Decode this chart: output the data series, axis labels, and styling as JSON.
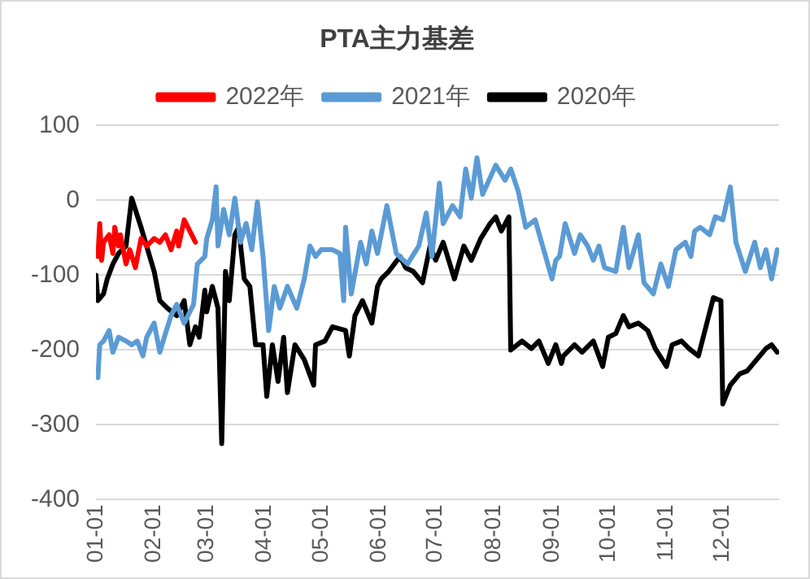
{
  "chart_data": {
    "type": "line",
    "title": "PTA主力基差",
    "legend": "top",
    "grid": "y",
    "line_style": "solid",
    "marker": "none",
    "xlim": [
      "--01-01",
      "--12-31"
    ],
    "xticks": [
      {
        "value": "--01-01",
        "label": "01-01"
      },
      {
        "value": "--02-01",
        "label": "02-01"
      },
      {
        "value": "--03-01",
        "label": "03-01"
      },
      {
        "value": "--04-01",
        "label": "04-01"
      },
      {
        "value": "--05-01",
        "label": "05-01"
      },
      {
        "value": "--06-01",
        "label": "06-01"
      },
      {
        "value": "--07-01",
        "label": "07-01"
      },
      {
        "value": "--08-01",
        "label": "08-01"
      },
      {
        "value": "--09-01",
        "label": "09-01"
      },
      {
        "value": "--10-01",
        "label": "10-01"
      },
      {
        "value": "--11-01",
        "label": "11-01"
      },
      {
        "value": "--12-01",
        "label": "12-01"
      }
    ],
    "ylim": [
      -400,
      100
    ],
    "yticks": [
      -400,
      -300,
      -200,
      -100,
      0,
      100
    ],
    "series": [
      {
        "name": "2022年",
        "color": "#ff0000",
        "x": [
          "--01-02",
          "--01-03",
          "--01-04",
          "--01-05",
          "--01-08",
          "--01-10",
          "--01-11",
          "--01-13",
          "--01-14",
          "--01-17",
          "--01-19",
          "--01-22",
          "--01-25",
          "--01-28",
          "--02-01",
          "--02-04",
          "--02-07",
          "--02-10",
          "--02-13",
          "--02-14",
          "--02-17",
          "--02-20",
          "--02-23"
        ],
        "values": [
          -75,
          -31,
          -80,
          -56,
          -46,
          -71,
          -36,
          -61,
          -46,
          -85,
          -66,
          -90,
          -51,
          -61,
          -51,
          -56,
          -46,
          -66,
          -41,
          -61,
          -26,
          -41,
          -56
        ]
      },
      {
        "name": "2021年",
        "color": "#5b9bd5",
        "x": [
          "--01-02",
          "--01-03",
          "--01-05",
          "--01-08",
          "--01-10",
          "--01-13",
          "--01-17",
          "--01-20",
          "--01-23",
          "--01-26",
          "--01-28",
          "--02-01",
          "--02-04",
          "--02-07",
          "--02-10",
          "--02-13",
          "--02-17",
          "--02-22",
          "--02-24",
          "--02-28",
          "--03-01",
          "--03-04",
          "--03-06",
          "--03-07",
          "--03-10",
          "--03-13",
          "--03-16",
          "--03-19",
          "--03-22",
          "--03-25",
          "--03-28",
          "--03-31",
          "--04-03",
          "--04-06",
          "--04-09",
          "--04-13",
          "--04-18",
          "--04-22",
          "--04-25",
          "--04-28",
          "--05-01",
          "--05-07",
          "--05-11",
          "--05-13",
          "--05-14",
          "--05-17",
          "--05-22",
          "--05-25",
          "--05-28",
          "--05-31",
          "--06-05",
          "--06-10",
          "--06-16",
          "--06-22",
          "--06-26",
          "--06-29",
          "--07-03",
          "--07-05",
          "--07-10",
          "--07-14",
          "--07-17",
          "--07-20",
          "--07-23",
          "--07-26",
          "--08-02",
          "--08-07",
          "--08-10",
          "--08-14",
          "--08-18",
          "--08-23",
          "--08-27",
          "--09-01",
          "--09-03",
          "--09-05",
          "--09-08",
          "--09-13",
          "--09-16",
          "--09-20",
          "--09-23",
          "--09-26",
          "--09-29",
          "--10-05",
          "--10-09",
          "--10-12",
          "--10-17",
          "--10-20",
          "--10-25",
          "--10-29",
          "--11-02",
          "--11-06",
          "--11-11",
          "--11-14",
          "--11-16",
          "--11-19",
          "--11-24",
          "--11-27",
          "--12-01",
          "--12-05",
          "--12-08",
          "--12-13",
          "--12-18",
          "--12-21",
          "--12-24",
          "--12-27",
          "--12-30"
        ],
        "values": [
          -237,
          -193,
          -188,
          -174,
          -203,
          -183,
          -188,
          -193,
          -188,
          -208,
          -183,
          -164,
          -203,
          -178,
          -154,
          -139,
          -164,
          -139,
          -85,
          -75,
          -51,
          -26,
          18,
          -61,
          -12,
          -46,
          3,
          -56,
          -31,
          -66,
          -2,
          -75,
          -174,
          -115,
          -144,
          -115,
          -144,
          -105,
          -61,
          -75,
          -66,
          -66,
          -71,
          -134,
          -36,
          -125,
          -56,
          -85,
          -41,
          -71,
          -7,
          -71,
          -85,
          -61,
          -17,
          -75,
          23,
          -31,
          -7,
          -22,
          42,
          3,
          57,
          8,
          47,
          27,
          42,
          12,
          -36,
          -26,
          -61,
          -105,
          -80,
          -75,
          -31,
          -71,
          -46,
          -61,
          -80,
          -61,
          -90,
          -95,
          -36,
          -90,
          -46,
          -110,
          -125,
          -85,
          -115,
          -66,
          -56,
          -75,
          -41,
          -36,
          -46,
          -22,
          -26,
          18,
          -56,
          -95,
          -56,
          -90,
          -66,
          -105,
          -66
        ]
      },
      {
        "name": "2020年",
        "color": "#000000",
        "x": [
          "--01-01",
          "--01-02",
          "--01-05",
          "--01-07",
          "--01-10",
          "--01-13",
          "--01-17",
          "--01-20",
          "--01-25",
          "--02-01",
          "--02-04",
          "--02-08",
          "--02-13",
          "--02-17",
          "--02-20",
          "--02-23",
          "--02-25",
          "--02-28",
          "--03-01",
          "--03-04",
          "--03-07",
          "--03-09",
          "--03-11",
          "--03-13",
          "--03-16",
          "--03-18",
          "--03-21",
          "--03-24",
          "--03-27",
          "--03-31",
          "--04-02",
          "--04-05",
          "--04-08",
          "--04-11",
          "--04-13",
          "--04-17",
          "--04-22",
          "--04-27",
          "--04-28",
          "--05-03",
          "--05-07",
          "--05-14",
          "--05-16",
          "--05-19",
          "--05-23",
          "--05-28",
          "--05-31",
          "--06-02",
          "--06-06",
          "--06-12",
          "--06-15",
          "--06-19",
          "--06-24",
          "--06-28",
          "--07-01",
          "--07-05",
          "--07-11",
          "--07-16",
          "--07-20",
          "--07-25",
          "--07-30",
          "--08-02",
          "--08-05",
          "--08-09",
          "--08-10",
          "--08-16",
          "--08-21",
          "--08-25",
          "--08-30",
          "--09-03",
          "--09-06",
          "--09-07",
          "--09-13",
          "--09-17",
          "--09-23",
          "--09-28",
          "--10-01",
          "--10-05",
          "--10-09",
          "--10-12",
          "--10-17",
          "--10-22",
          "--10-26",
          "--11-01",
          "--11-04",
          "--11-09",
          "--11-13",
          "--11-18",
          "--11-22",
          "--11-26",
          "--11-30",
          "--12-01",
          "--12-05",
          "--12-10",
          "--12-14",
          "--12-19",
          "--12-24",
          "--12-27",
          "--12-30"
        ],
        "values": [
          -100,
          -134,
          -125,
          -105,
          -85,
          -71,
          -61,
          3,
          -36,
          -95,
          -134,
          -144,
          -154,
          -134,
          -193,
          -169,
          -183,
          -120,
          -149,
          -115,
          -144,
          -325,
          -95,
          -134,
          -46,
          -36,
          -105,
          -115,
          -193,
          -193,
          -262,
          -193,
          -242,
          -183,
          -257,
          -193,
          -213,
          -247,
          -193,
          -188,
          -169,
          -174,
          -208,
          -154,
          -134,
          -164,
          -115,
          -105,
          -95,
          -75,
          -90,
          -95,
          -110,
          -61,
          -80,
          -56,
          -105,
          -61,
          -80,
          -51,
          -31,
          -22,
          -41,
          -22,
          -200,
          -188,
          -198,
          -188,
          -218,
          -193,
          -218,
          -208,
          -193,
          -203,
          -188,
          -222,
          -183,
          -178,
          -154,
          -169,
          -164,
          -174,
          -198,
          -222,
          -193,
          -188,
          -198,
          -208,
          -169,
          -130,
          -134,
          -272,
          -247,
          -232,
          -228,
          -213,
          -198,
          -193,
          -203
        ]
      }
    ]
  }
}
